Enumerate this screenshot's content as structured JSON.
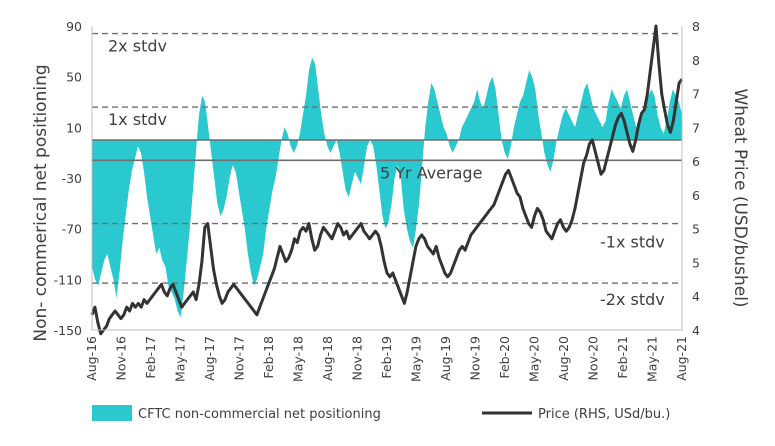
{
  "chart_data": {
    "type": "area",
    "title": "",
    "ylabel_left": "Non- commerical net positioning",
    "ylabel_right": "Wheat Price (USD/bushel)",
    "xlabel": "",
    "y_left": {
      "min": -150,
      "max": 90,
      "ticks": [
        90,
        50,
        10,
        -30,
        -70,
        -110,
        -150
      ]
    },
    "y_right": {
      "min": 4,
      "max": 8,
      "ticks": [
        "8",
        "8",
        "7",
        "7",
        "6",
        "6",
        "5",
        "5",
        "4",
        "4"
      ]
    },
    "x_tick_labels": [
      "Aug-16",
      "Nov-16",
      "Feb-17",
      "May-17",
      "Aug-17",
      "Nov-17",
      "Feb-18",
      "May-18",
      "Aug-18",
      "Nov-18",
      "Feb-19",
      "May-19",
      "Aug-19",
      "Nov-19",
      "Feb-20",
      "May-20",
      "Aug-20",
      "Nov-20",
      "Feb-21",
      "May-21",
      "Aug-21"
    ],
    "reference_lines": [
      {
        "label": "2x stdv",
        "value": 84,
        "style": "dashed"
      },
      {
        "label": "1x stdv",
        "value": 26,
        "style": "dashed"
      },
      {
        "label": "",
        "value": 0,
        "style": "solid"
      },
      {
        "label": "5 Yr Average",
        "value": -16,
        "style": "solid"
      },
      {
        "label": "-1x stdv",
        "value": -66,
        "style": "dashed"
      },
      {
        "label": "-2x stdv",
        "value": -113,
        "style": "dashed"
      }
    ],
    "series": [
      {
        "name": "CFTC non-commercial net positioning",
        "axis": "left",
        "color": "#2ac8cf",
        "kind": "area",
        "values": [
          -100,
          -110,
          -115,
          -105,
          -95,
          -90,
          -100,
          -110,
          -125,
          -105,
          -80,
          -60,
          -40,
          -25,
          -15,
          -5,
          -10,
          -25,
          -45,
          -60,
          -75,
          -90,
          -85,
          -95,
          -100,
          -115,
          -120,
          -125,
          -135,
          -140,
          -120,
          -95,
          -70,
          -40,
          -10,
          20,
          35,
          30,
          10,
          -10,
          -30,
          -50,
          -60,
          -55,
          -45,
          -30,
          -20,
          -25,
          -40,
          -55,
          -70,
          -90,
          -105,
          -115,
          -110,
          -100,
          -90,
          -70,
          -55,
          -40,
          -30,
          -15,
          0,
          10,
          5,
          -5,
          -10,
          -5,
          5,
          20,
          35,
          55,
          65,
          60,
          40,
          20,
          5,
          -5,
          -10,
          -5,
          0,
          -10,
          -25,
          -40,
          -45,
          -35,
          -25,
          -30,
          -35,
          -20,
          -5,
          0,
          -5,
          -20,
          -40,
          -60,
          -70,
          -65,
          -50,
          -30,
          -20,
          -30,
          -55,
          -70,
          -80,
          -85,
          -70,
          -50,
          -20,
          10,
          30,
          45,
          40,
          30,
          20,
          10,
          5,
          -5,
          -10,
          -5,
          0,
          10,
          15,
          20,
          25,
          30,
          40,
          30,
          25,
          35,
          45,
          50,
          40,
          20,
          0,
          -10,
          -15,
          -5,
          10,
          20,
          30,
          35,
          45,
          55,
          50,
          40,
          20,
          5,
          -10,
          -20,
          -25,
          -15,
          0,
          10,
          20,
          25,
          20,
          15,
          10,
          20,
          30,
          40,
          45,
          35,
          25,
          20,
          15,
          10,
          15,
          30,
          40,
          35,
          30,
          25,
          35,
          40,
          30,
          20,
          10,
          15,
          20,
          30,
          35,
          40,
          35,
          20,
          10,
          5,
          15,
          30,
          40,
          35,
          30,
          20
        ],
        "x_start": "Aug-16",
        "x_end": "Aug-21"
      },
      {
        "name": "Price (RHS, USd/bu.)",
        "axis": "right",
        "color": "#333333",
        "kind": "line",
        "values": [
          4.2,
          4.3,
          4.1,
          3.95,
          4.0,
          4.05,
          4.15,
          4.2,
          4.25,
          4.2,
          4.15,
          4.2,
          4.3,
          4.25,
          4.35,
          4.3,
          4.35,
          4.3,
          4.4,
          4.35,
          4.4,
          4.45,
          4.5,
          4.55,
          4.6,
          4.5,
          4.45,
          4.55,
          4.6,
          4.5,
          4.4,
          4.3,
          4.35,
          4.4,
          4.45,
          4.5,
          4.4,
          4.6,
          4.9,
          5.35,
          5.4,
          5.1,
          4.8,
          4.6,
          4.45,
          4.35,
          4.4,
          4.5,
          4.55,
          4.6,
          4.55,
          4.5,
          4.45,
          4.4,
          4.35,
          4.3,
          4.25,
          4.2,
          4.3,
          4.4,
          4.5,
          4.6,
          4.7,
          4.8,
          4.95,
          5.1,
          5.0,
          4.9,
          4.95,
          5.05,
          5.2,
          5.15,
          5.3,
          5.35,
          5.3,
          5.4,
          5.2,
          5.05,
          5.1,
          5.25,
          5.35,
          5.3,
          5.25,
          5.2,
          5.3,
          5.4,
          5.35,
          5.25,
          5.3,
          5.2,
          5.25,
          5.3,
          5.35,
          5.4,
          5.3,
          5.25,
          5.2,
          5.25,
          5.3,
          5.25,
          5.1,
          4.9,
          4.75,
          4.7,
          4.75,
          4.65,
          4.55,
          4.45,
          4.35,
          4.5,
          4.7,
          4.9,
          5.1,
          5.2,
          5.25,
          5.2,
          5.1,
          5.05,
          5.0,
          5.1,
          4.95,
          4.85,
          4.75,
          4.7,
          4.75,
          4.85,
          4.95,
          5.05,
          5.1,
          5.05,
          5.15,
          5.25,
          5.3,
          5.35,
          5.4,
          5.45,
          5.5,
          5.55,
          5.6,
          5.65,
          5.75,
          5.85,
          5.95,
          6.05,
          6.1,
          6.0,
          5.9,
          5.8,
          5.75,
          5.6,
          5.5,
          5.4,
          5.35,
          5.5,
          5.6,
          5.55,
          5.45,
          5.3,
          5.25,
          5.2,
          5.3,
          5.4,
          5.45,
          5.35,
          5.3,
          5.35,
          5.45,
          5.6,
          5.8,
          6.0,
          6.2,
          6.3,
          6.45,
          6.5,
          6.35,
          6.2,
          6.05,
          6.1,
          6.25,
          6.4,
          6.55,
          6.7,
          6.8,
          6.85,
          6.75,
          6.6,
          6.45,
          6.35,
          6.5,
          6.7,
          6.85,
          6.9,
          7.1,
          7.4,
          7.7,
          8.0,
          7.5,
          7.1,
          6.9,
          6.7,
          6.6,
          6.75,
          7.0,
          7.25,
          7.3
        ],
        "x_start": "Aug-16",
        "x_end": "Aug-21"
      }
    ],
    "legend": {
      "placement": "bottom"
    }
  }
}
